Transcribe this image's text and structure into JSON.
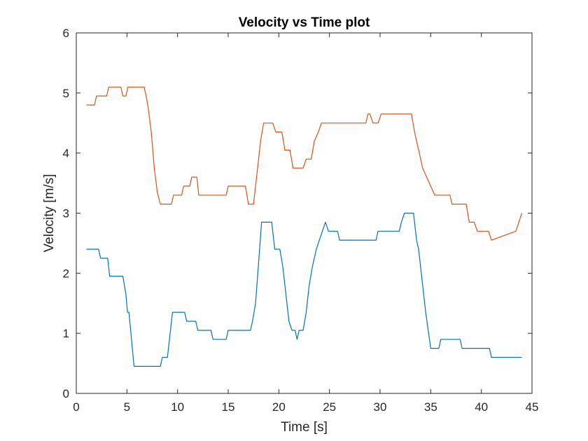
{
  "chart_data": {
    "type": "line",
    "title": "Velocity vs Time plot",
    "xlabel": "Time [s]",
    "ylabel": "Velocity [m/s]",
    "xlim": [
      0,
      45
    ],
    "ylim": [
      0,
      6
    ],
    "xticks": [
      0,
      5,
      10,
      15,
      20,
      25,
      30,
      35,
      40,
      45
    ],
    "yticks": [
      0,
      1,
      2,
      3,
      4,
      5,
      6
    ],
    "grid": false,
    "legend": "none",
    "series": [
      {
        "color": "#0072BD",
        "x": [
          1,
          2.2,
          2.4,
          3.1,
          3.3,
          4.6,
          4.9,
          5.05,
          5.2,
          5.7,
          8.3,
          8.5,
          9.0,
          9.5,
          9.7,
          10.7,
          10.9,
          11.8,
          12.0,
          13.3,
          13.5,
          14.8,
          15.0,
          17.2,
          17.4,
          17.7,
          18.3,
          19.3,
          19.6,
          20.1,
          20.4,
          21.0,
          21.3,
          21.6,
          21.8,
          22.0,
          22.4,
          22.7,
          23.0,
          23.3,
          23.7,
          24.0,
          24.6,
          24.9,
          25.8,
          26.0,
          29.6,
          29.8,
          31.9,
          32.1,
          32.4,
          33.3,
          33.6,
          33.8,
          34.0,
          34.5,
          35.0,
          35.8,
          36.0,
          37.9,
          38.1,
          40.8,
          41.0,
          44
        ],
        "y": [
          2.4,
          2.4,
          2.25,
          2.25,
          1.95,
          1.95,
          1.65,
          1.35,
          1.35,
          0.45,
          0.45,
          0.6,
          0.6,
          1.35,
          1.35,
          1.35,
          1.2,
          1.2,
          1.05,
          1.05,
          0.9,
          0.9,
          1.05,
          1.05,
          1.2,
          1.5,
          2.85,
          2.85,
          2.4,
          2.4,
          2.1,
          1.2,
          1.05,
          1.05,
          0.9,
          1.05,
          1.05,
          1.35,
          1.8,
          2.1,
          2.4,
          2.55,
          2.85,
          2.7,
          2.7,
          2.55,
          2.55,
          2.7,
          2.7,
          2.85,
          3.0,
          3.0,
          2.55,
          2.4,
          2.1,
          1.35,
          0.75,
          0.75,
          0.9,
          0.9,
          0.75,
          0.75,
          0.6,
          0.6
        ]
      },
      {
        "color": "#D95319",
        "x": [
          1,
          1.8,
          2.0,
          3.0,
          3.2,
          4.4,
          4.6,
          4.9,
          5.1,
          6.7,
          6.9,
          7.1,
          7.4,
          7.7,
          8.0,
          8.3,
          8.5,
          9.4,
          9.6,
          10.4,
          10.6,
          11.2,
          11.4,
          11.9,
          12.1,
          14.8,
          15.0,
          16.7,
          17.0,
          17.5,
          17.7,
          18.2,
          18.5,
          19.4,
          19.7,
          20.3,
          20.6,
          21.1,
          21.4,
          22.4,
          22.7,
          23.2,
          23.5,
          23.9,
          24.2,
          28.6,
          28.8,
          29.0,
          29.3,
          29.8,
          30.1,
          33.1,
          33.4,
          33.8,
          34.2,
          34.6,
          35.0,
          35.4,
          35.7,
          36.9,
          37.1,
          38.5,
          38.8,
          39.3,
          39.6,
          40.7,
          41.0,
          43.4,
          43.7,
          44
        ],
        "y": [
          4.8,
          4.8,
          4.95,
          4.95,
          5.1,
          5.1,
          4.95,
          4.95,
          5.1,
          5.1,
          4.95,
          4.75,
          4.35,
          3.75,
          3.35,
          3.15,
          3.15,
          3.15,
          3.3,
          3.3,
          3.45,
          3.45,
          3.6,
          3.6,
          3.3,
          3.3,
          3.45,
          3.45,
          3.15,
          3.15,
          3.45,
          4.2,
          4.5,
          4.5,
          4.35,
          4.35,
          4.05,
          4.05,
          3.75,
          3.75,
          3.9,
          3.9,
          4.2,
          4.35,
          4.5,
          4.5,
          4.65,
          4.65,
          4.5,
          4.5,
          4.65,
          4.65,
          4.35,
          4.05,
          3.75,
          3.6,
          3.45,
          3.3,
          3.3,
          3.3,
          3.15,
          3.15,
          2.85,
          2.85,
          2.7,
          2.7,
          2.55,
          2.7,
          2.85,
          3.0
        ]
      }
    ]
  }
}
